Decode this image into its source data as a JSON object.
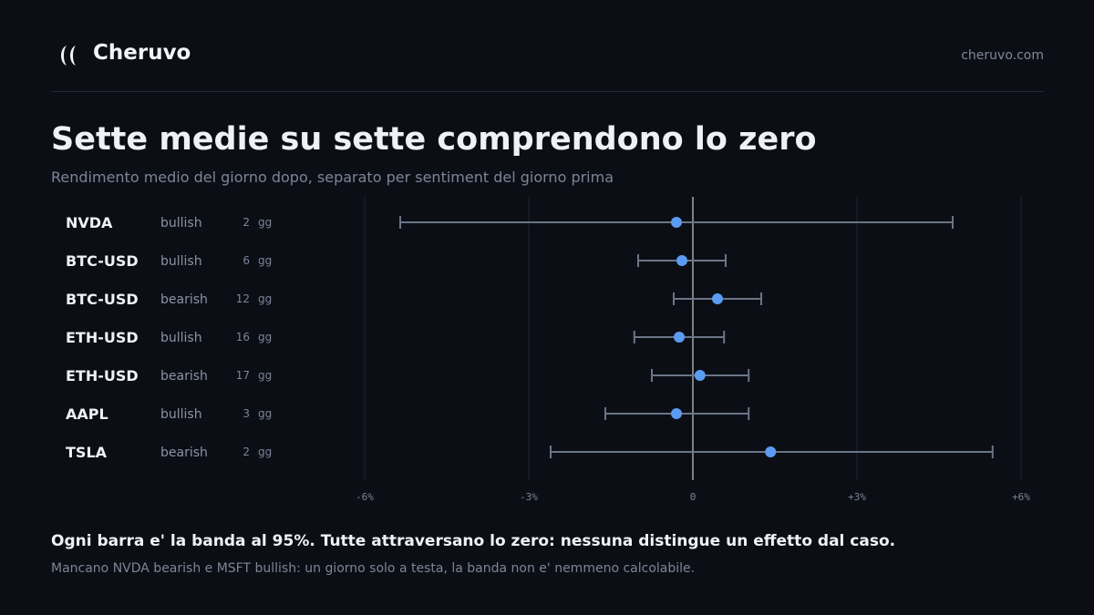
{
  "header": {
    "brand": "Cheruvo",
    "site": "cheruvo.com"
  },
  "title": "Sette medie su sette comprendono lo zero",
  "subtitle": "Rendimento medio del giorno dopo, separato per sentiment del giorno prima",
  "footer": {
    "headline": "Ogni barra e' la banda al 95%. Tutte attraversano lo zero: nessuna distingue un effetto dal caso.",
    "note": "Mancano NVDA bearish e MSFT bullish: un giorno solo a testa, la banda non e' nemmeno calcolabile."
  },
  "chart_data": {
    "type": "scatter",
    "xlim": [
      -6.2,
      6.2
    ],
    "x_ticks": [
      -6,
      -3,
      0,
      3,
      6
    ],
    "x_tick_labels": [
      "-6%",
      "-3%",
      "0",
      "+3%",
      "+6%"
    ],
    "unit": "%",
    "days_suffix": "gg",
    "colors": {
      "point": "#5b9cf2",
      "interval": "#6b7587",
      "zero_line": "#f0f2f6",
      "grid": "#1f2430"
    },
    "rows": [
      {
        "ticker": "NVDA",
        "sentiment": "bullish",
        "days": 2,
        "mean": -0.3,
        "low": -5.35,
        "high": 4.75
      },
      {
        "ticker": "BTC-USD",
        "sentiment": "bullish",
        "days": 6,
        "mean": -0.2,
        "low": -1.0,
        "high": 0.6
      },
      {
        "ticker": "BTC-USD",
        "sentiment": "bearish",
        "days": 12,
        "mean": 0.45,
        "low": -0.35,
        "high": 1.25
      },
      {
        "ticker": "ETH-USD",
        "sentiment": "bullish",
        "days": 16,
        "mean": -0.25,
        "low": -1.07,
        "high": 0.57
      },
      {
        "ticker": "ETH-USD",
        "sentiment": "bearish",
        "days": 17,
        "mean": 0.13,
        "low": -0.75,
        "high": 1.02
      },
      {
        "ticker": "AAPL",
        "sentiment": "bullish",
        "days": 3,
        "mean": -0.3,
        "low": -1.6,
        "high": 1.02
      },
      {
        "ticker": "TSLA",
        "sentiment": "bearish",
        "days": 2,
        "mean": 1.42,
        "low": -2.6,
        "high": 5.48
      }
    ]
  }
}
